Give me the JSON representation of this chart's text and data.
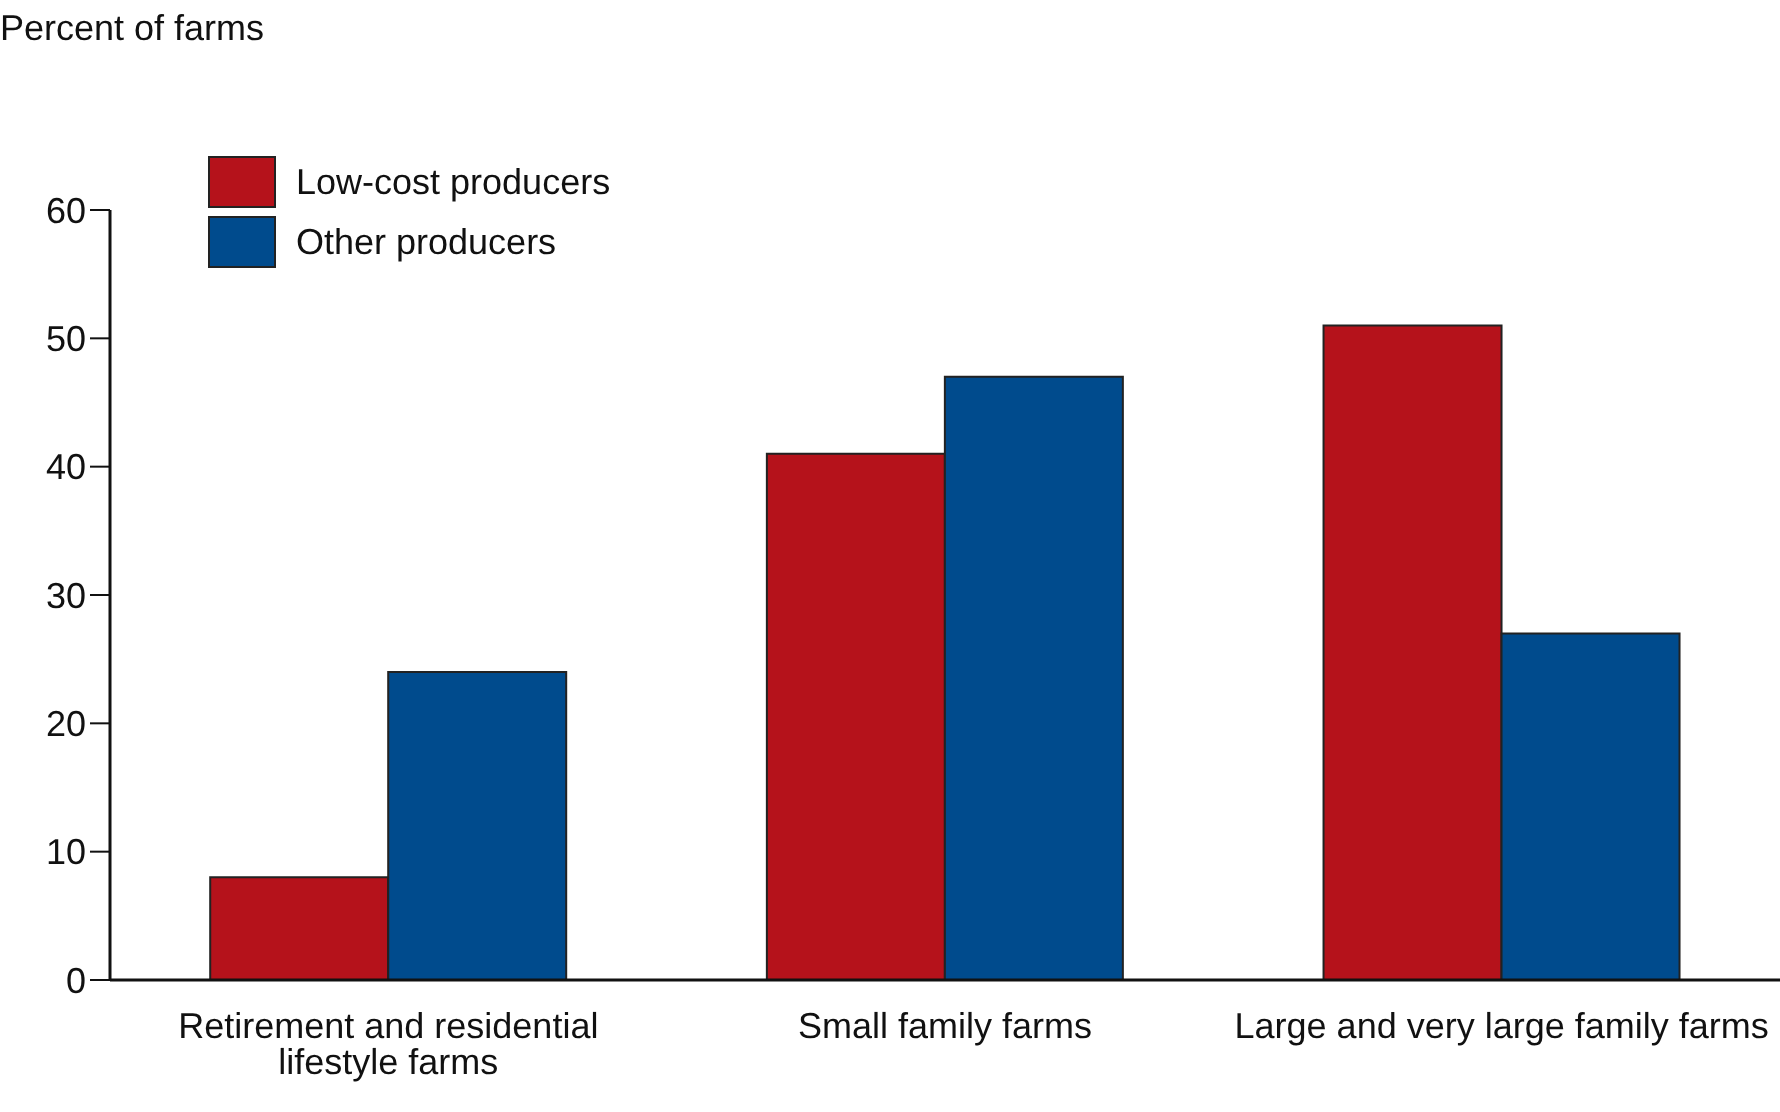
{
  "chart_data": {
    "type": "bar",
    "ylabel": "Percent of farms",
    "categories": [
      "Retirement and residential lifestyle farms",
      "Small family farms",
      "Large and very large family farms"
    ],
    "series": [
      {
        "name": "Low-cost producers",
        "color": "#b5121b",
        "values": [
          8,
          41,
          51
        ]
      },
      {
        "name": "Other producers",
        "color": "#004b8d",
        "values": [
          24,
          47,
          27
        ]
      }
    ],
    "ylim": [
      0,
      60
    ],
    "yticks": [
      0,
      10,
      20,
      30,
      40,
      50,
      60
    ],
    "grid": false,
    "legend": "top left"
  }
}
